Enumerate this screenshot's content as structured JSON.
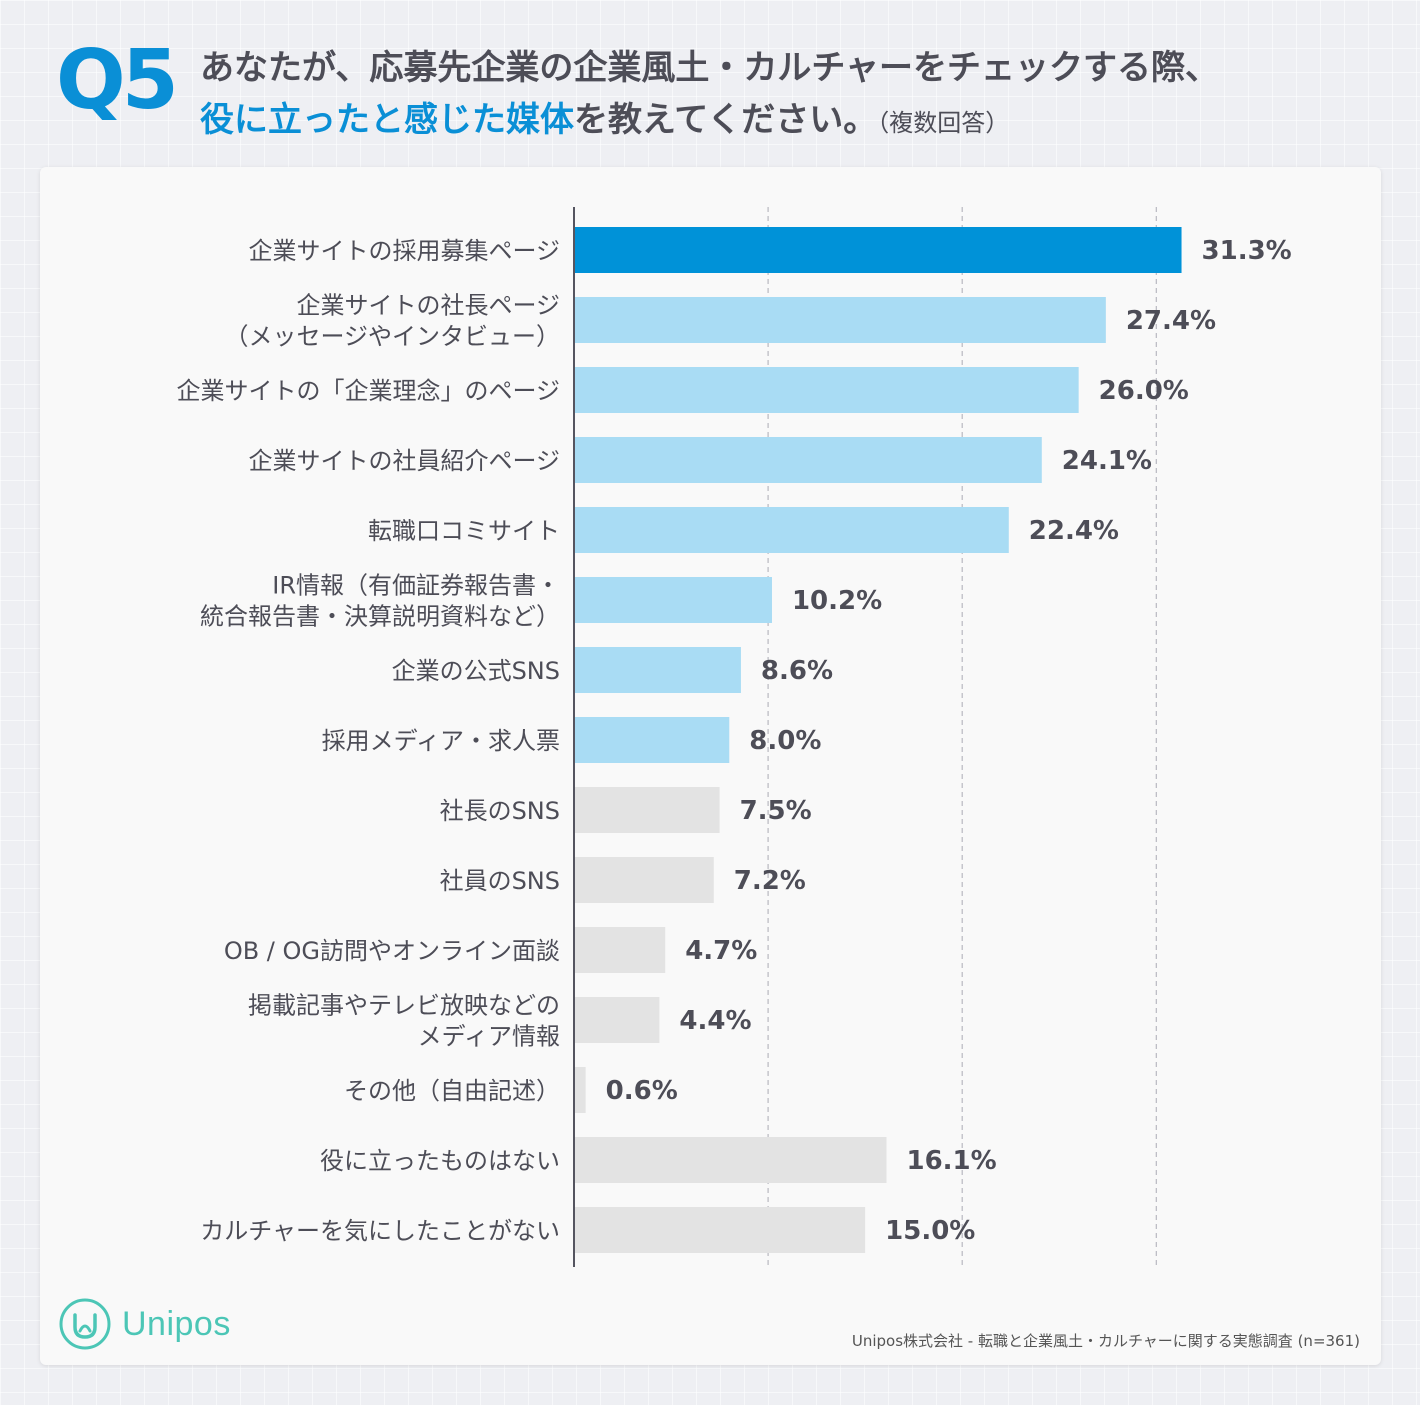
{
  "header": {
    "q_label": "Q5",
    "title_line1": "あなたが、応募先企業の企業風土・カルチャーをチェックする際、",
    "title_line2_highlight": "役に立ったと感じた媒体",
    "title_line2_rest": "を教えてください。",
    "title_note": "（複数回答）"
  },
  "colors": {
    "top": "#0092d8",
    "mid": "#a9dcf4",
    "low": "#e3e3e3",
    "axis": "#555560",
    "label_text": "#4d4d57",
    "value_text": "#4d4d57"
  },
  "chart_data": {
    "type": "bar",
    "orientation": "horizontal",
    "categories": [
      [
        "企業サイトの採用募集ページ"
      ],
      [
        "企業サイトの社長ページ",
        "（メッセージやインタビュー）"
      ],
      [
        "企業サイトの「企業理念」のページ"
      ],
      [
        "企業サイトの社員紹介ページ"
      ],
      [
        "転職口コミサイト"
      ],
      [
        "IR情報（有価証券報告書・",
        "統合報告書・決算説明資料など）"
      ],
      [
        "企業の公式SNS"
      ],
      [
        "採用メディア・求人票"
      ],
      [
        "社長のSNS"
      ],
      [
        "社員のSNS"
      ],
      [
        "OB / OG訪問やオンライン面談"
      ],
      [
        "掲載記事やテレビ放映などの",
        "メディア情報"
      ],
      [
        "その他（自由記述）"
      ],
      [
        "役に立ったものはない"
      ],
      [
        "カルチャーを気にしたことがない"
      ]
    ],
    "values": [
      31.3,
      27.4,
      26.0,
      24.1,
      22.4,
      10.2,
      8.6,
      8.0,
      7.5,
      7.2,
      4.7,
      4.4,
      0.6,
      16.1,
      15.0
    ],
    "value_labels": [
      "31.3%",
      "27.4%",
      "26.0%",
      "24.1%",
      "22.4%",
      "10.2%",
      "8.6%",
      "8.0%",
      "7.5%",
      "7.2%",
      "4.7%",
      "4.4%",
      "0.6%",
      "16.1%",
      "15.0%"
    ],
    "color_groups": [
      "top",
      "mid",
      "mid",
      "mid",
      "mid",
      "mid",
      "mid",
      "mid",
      "low",
      "low",
      "low",
      "low",
      "low",
      "low",
      "low"
    ],
    "xlim": [
      0,
      40
    ],
    "gridlines": [
      10,
      20,
      30
    ],
    "unit": "%"
  },
  "footer": {
    "brand": "Unipos",
    "source": "Unipos株式会社 - 転職と企業風土・カルチャーに関する実態調査 (n=361)"
  }
}
